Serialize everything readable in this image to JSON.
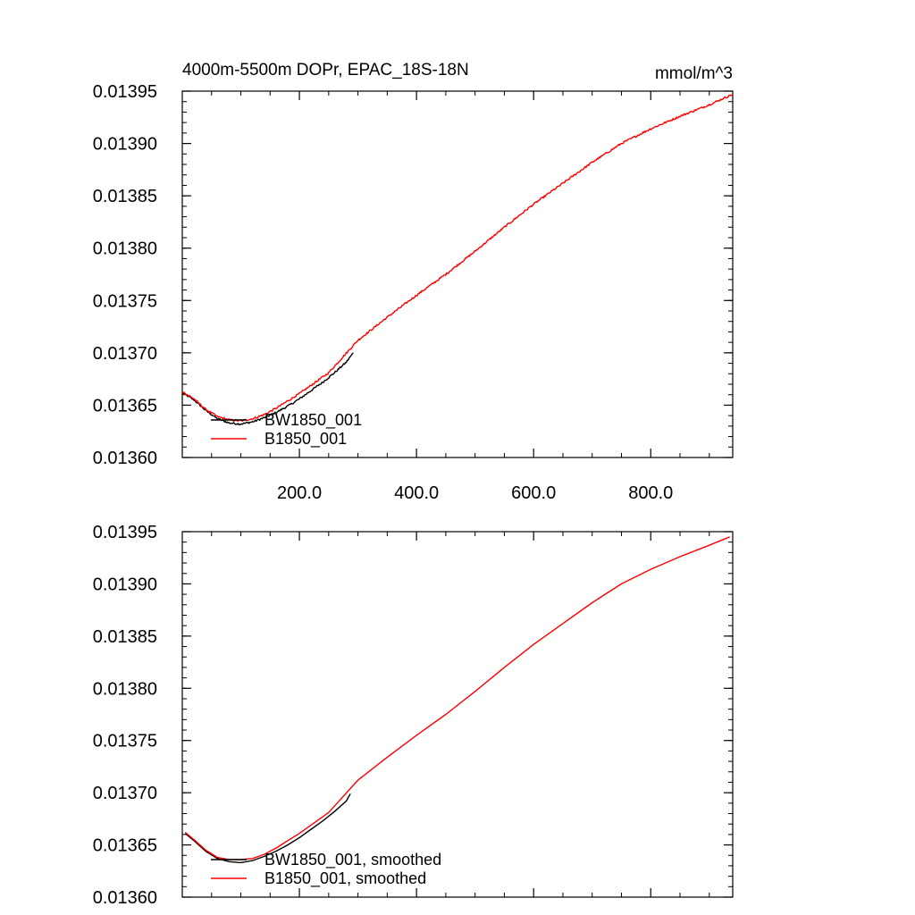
{
  "chart_data": [
    {
      "type": "line",
      "panel": "top",
      "title": "4000m-5500m DOPr, EPAC_18S-18N",
      "units": "mmol/m^3",
      "xlabel": "",
      "ylabel": "",
      "xlim": [
        0,
        940
      ],
      "ylim": [
        0.0136,
        0.01395
      ],
      "x_ticks": [
        200,
        400,
        600,
        800
      ],
      "x_tick_labels": [
        "200.0",
        "400.0",
        "600.0",
        "800.0"
      ],
      "y_ticks": [
        0.0136,
        0.01365,
        0.0137,
        0.01375,
        0.0138,
        0.01385,
        0.0139,
        0.01395
      ],
      "y_tick_labels": [
        "0.01360",
        "0.01365",
        "0.01370",
        "0.01375",
        "0.01380",
        "0.01385",
        "0.01390",
        "0.01395"
      ],
      "noisy": true,
      "legend_position": "bottom-left",
      "series": [
        {
          "name": "BW1850_001",
          "color": "#000000",
          "x": [
            0,
            20,
            40,
            60,
            80,
            100,
            120,
            140,
            160,
            180,
            200,
            220,
            240,
            260,
            280,
            292
          ],
          "values": [
            0.013662,
            0.013655,
            0.013645,
            0.013637,
            0.013633,
            0.013632,
            0.013634,
            0.013638,
            0.013643,
            0.013649,
            0.013656,
            0.013664,
            0.013672,
            0.013681,
            0.013691,
            0.0137
          ]
        },
        {
          "name": "B1850_001",
          "color": "#ff0000",
          "x": [
            0,
            20,
            40,
            60,
            80,
            100,
            120,
            140,
            160,
            180,
            200,
            250,
            300,
            350,
            400,
            450,
            500,
            550,
            600,
            650,
            700,
            750,
            800,
            850,
            900,
            940
          ],
          "values": [
            0.013663,
            0.013656,
            0.013646,
            0.013639,
            0.013636,
            0.013635,
            0.013637,
            0.013641,
            0.013647,
            0.013654,
            0.013661,
            0.013681,
            0.013712,
            0.013734,
            0.013755,
            0.013775,
            0.013797,
            0.01382,
            0.013842,
            0.013862,
            0.013882,
            0.0139,
            0.013914,
            0.013926,
            0.013937,
            0.013947
          ]
        }
      ]
    },
    {
      "type": "line",
      "panel": "bottom",
      "title": "",
      "xlabel": "",
      "ylabel": "",
      "xlim": [
        0,
        940
      ],
      "ylim": [
        0.0136,
        0.01395
      ],
      "x_ticks": [
        200,
        400,
        600,
        800
      ],
      "y_ticks": [
        0.0136,
        0.01365,
        0.0137,
        0.01375,
        0.0138,
        0.01385,
        0.0139,
        0.01395
      ],
      "y_tick_labels": [
        "0.01360",
        "0.01365",
        "0.01370",
        "0.01375",
        "0.01380",
        "0.01385",
        "0.01390",
        "0.01395"
      ],
      "noisy": false,
      "legend_position": "bottom-left",
      "series": [
        {
          "name": "BW1850_001, smoothed",
          "color": "#000000",
          "x": [
            5,
            20,
            40,
            60,
            80,
            100,
            120,
            140,
            160,
            180,
            200,
            220,
            240,
            260,
            280,
            287
          ],
          "values": [
            0.013661,
            0.013654,
            0.013644,
            0.013637,
            0.013634,
            0.013633,
            0.013635,
            0.013639,
            0.013644,
            0.01365,
            0.013657,
            0.013665,
            0.013673,
            0.013682,
            0.013692,
            0.013699
          ]
        },
        {
          "name": "B1850_001, smoothed",
          "color": "#ff0000",
          "x": [
            5,
            20,
            40,
            60,
            80,
            100,
            120,
            140,
            160,
            180,
            200,
            250,
            300,
            350,
            400,
            450,
            500,
            550,
            600,
            650,
            700,
            750,
            800,
            850,
            900,
            935
          ],
          "values": [
            0.013662,
            0.013655,
            0.013645,
            0.013638,
            0.013636,
            0.013636,
            0.013637,
            0.013641,
            0.013647,
            0.013654,
            0.013661,
            0.013681,
            0.013712,
            0.013734,
            0.013755,
            0.013775,
            0.013797,
            0.01382,
            0.013842,
            0.013862,
            0.013882,
            0.0139,
            0.013914,
            0.013926,
            0.013937,
            0.013945
          ]
        }
      ]
    }
  ]
}
